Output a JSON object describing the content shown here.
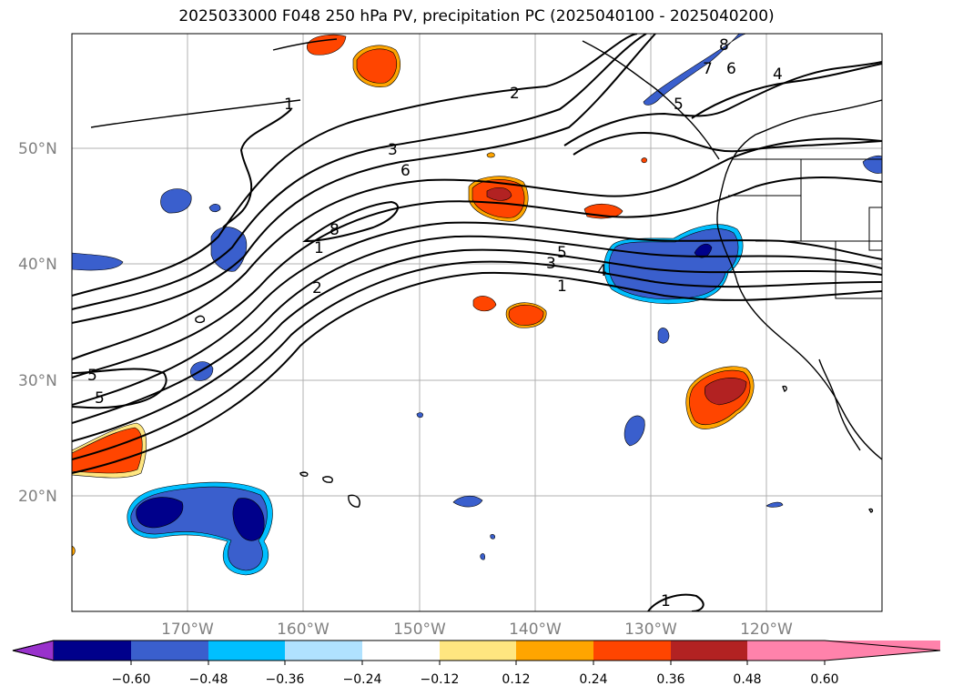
{
  "title": "2025033000 F048 250 hPa PV, precipitation PC (2025040100 - 2025040200)",
  "map": {
    "lat_labels": [
      "50°N",
      "40°N",
      "30°N",
      "20°N"
    ],
    "lon_labels": [
      "170°W",
      "160°W",
      "150°W",
      "140°W",
      "130°W",
      "120°W"
    ],
    "contour_labels": [
      "1",
      "2",
      "3",
      "6",
      "8",
      "1",
      "2",
      "5",
      "3",
      "1",
      "4",
      "5",
      "5",
      "8",
      "7",
      "6",
      "4",
      "5",
      "1"
    ]
  },
  "colorbar": {
    "ticks": [
      "−0.60",
      "−0.48",
      "−0.36",
      "−0.24",
      "−0.12",
      "0.12",
      "0.24",
      "0.36",
      "0.48",
      "0.60"
    ],
    "colors": [
      "#9932cc",
      "#00008b",
      "#3a5fcd",
      "#00bfff",
      "#b0e2ff",
      "#ffffff",
      "#ffe680",
      "#ffa500",
      "#ff4500",
      "#b22222",
      "#ff82ab"
    ],
    "extend": "both"
  }
}
